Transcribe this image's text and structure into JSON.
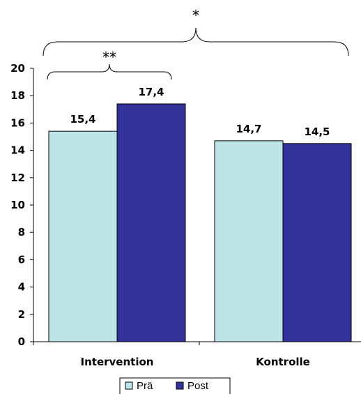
{
  "chart_data": {
    "type": "bar",
    "categories": [
      "Intervention",
      "Kontrolle"
    ],
    "series": [
      {
        "name": "Prä",
        "color": "#bde4e6",
        "values": [
          15.4,
          14.7
        ],
        "labels": [
          "15,4",
          "14,7"
        ]
      },
      {
        "name": "Post",
        "color": "#333399",
        "values": [
          17.4,
          14.5
        ],
        "labels": [
          "17,4",
          "14,5"
        ]
      }
    ],
    "ylim": [
      0,
      20
    ],
    "yticks": [
      0,
      2,
      4,
      6,
      8,
      10,
      12,
      14,
      16,
      18,
      20
    ],
    "grid": false,
    "legend": "bottom",
    "annotations": [
      {
        "text": "**",
        "spans": "Intervention: Prä vs Post"
      },
      {
        "text": "*",
        "spans": "Intervention vs Kontrolle"
      }
    ]
  }
}
